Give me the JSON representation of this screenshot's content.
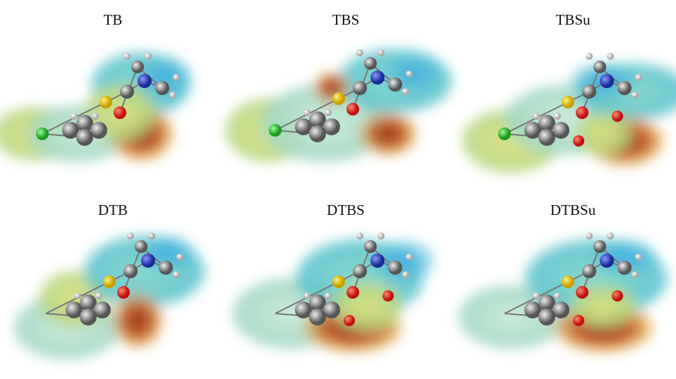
{
  "panels": [
    {
      "label": "TB"
    },
    {
      "label": "TBS"
    },
    {
      "label": "TBSu"
    },
    {
      "label": "DTB"
    },
    {
      "label": "DTBS"
    },
    {
      "label": "DTBSu"
    }
  ]
}
